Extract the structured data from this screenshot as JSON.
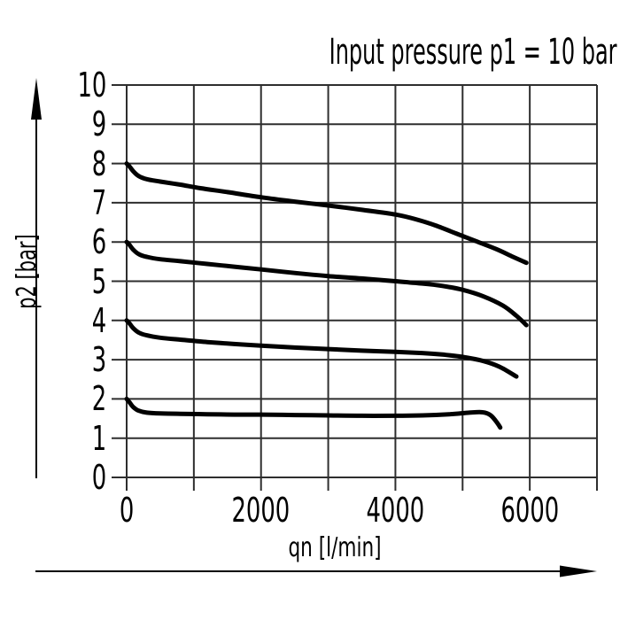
{
  "page": {
    "background_color": "#ffffff",
    "ink_color": "#000000",
    "grid_color": "#2e2e2e"
  },
  "chart_data": {
    "type": "line",
    "title": "Input pressure p1 = 10 bar",
    "xlabel": "qn [l/min]",
    "ylabel": "p2 [bar]",
    "xlim": [
      0,
      7000
    ],
    "ylim": [
      0,
      10
    ],
    "grid": true,
    "x_grid_step": 1000,
    "y_grid_step": 1,
    "legend": "none",
    "x_tick_labels": [
      {
        "value": 0,
        "label": "0"
      },
      {
        "value": 2000,
        "label": "2000"
      },
      {
        "value": 4000,
        "label": "4000"
      },
      {
        "value": 6000,
        "label": "6000"
      }
    ],
    "y_tick_labels": [
      {
        "value": 0,
        "label": "0"
      },
      {
        "value": 1,
        "label": "1"
      },
      {
        "value": 2,
        "label": "2"
      },
      {
        "value": 3,
        "label": "3"
      },
      {
        "value": 4,
        "label": "4"
      },
      {
        "value": 5,
        "label": "5"
      },
      {
        "value": 6,
        "label": "6"
      },
      {
        "value": 7,
        "label": "7"
      },
      {
        "value": 8,
        "label": "8"
      },
      {
        "value": 9,
        "label": "9"
      },
      {
        "value": 10,
        "label": "10"
      }
    ],
    "series": [
      {
        "name": "output pressure curve, set point 8 bar",
        "color": "#000000",
        "points": [
          [
            0,
            8.0
          ],
          [
            40,
            7.93
          ],
          [
            100,
            7.8
          ],
          [
            180,
            7.68
          ],
          [
            300,
            7.6
          ],
          [
            500,
            7.54
          ],
          [
            800,
            7.46
          ],
          [
            1100,
            7.37
          ],
          [
            1500,
            7.27
          ],
          [
            2000,
            7.14
          ],
          [
            2500,
            7.03
          ],
          [
            3000,
            6.93
          ],
          [
            3500,
            6.82
          ],
          [
            4000,
            6.7
          ],
          [
            4300,
            6.58
          ],
          [
            4600,
            6.42
          ],
          [
            4900,
            6.22
          ],
          [
            5200,
            6.02
          ],
          [
            5500,
            5.82
          ],
          [
            5750,
            5.62
          ],
          [
            5950,
            5.47
          ]
        ]
      },
      {
        "name": "output pressure curve, set point 6 bar",
        "color": "#000000",
        "points": [
          [
            0,
            6.0
          ],
          [
            40,
            5.93
          ],
          [
            100,
            5.8
          ],
          [
            180,
            5.69
          ],
          [
            300,
            5.62
          ],
          [
            500,
            5.56
          ],
          [
            800,
            5.51
          ],
          [
            1200,
            5.44
          ],
          [
            1600,
            5.37
          ],
          [
            2000,
            5.3
          ],
          [
            2500,
            5.21
          ],
          [
            3000,
            5.13
          ],
          [
            3500,
            5.07
          ],
          [
            4000,
            5.0
          ],
          [
            4400,
            4.94
          ],
          [
            4700,
            4.88
          ],
          [
            5000,
            4.78
          ],
          [
            5300,
            4.62
          ],
          [
            5600,
            4.38
          ],
          [
            5800,
            4.12
          ],
          [
            5950,
            3.88
          ]
        ]
      },
      {
        "name": "output pressure curve, set point 4 bar",
        "color": "#000000",
        "points": [
          [
            0,
            4.0
          ],
          [
            40,
            3.93
          ],
          [
            100,
            3.8
          ],
          [
            180,
            3.69
          ],
          [
            300,
            3.62
          ],
          [
            500,
            3.56
          ],
          [
            800,
            3.51
          ],
          [
            1200,
            3.45
          ],
          [
            1600,
            3.4
          ],
          [
            2000,
            3.36
          ],
          [
            2500,
            3.31
          ],
          [
            3000,
            3.27
          ],
          [
            3500,
            3.23
          ],
          [
            4000,
            3.2
          ],
          [
            4400,
            3.17
          ],
          [
            4700,
            3.13
          ],
          [
            5000,
            3.07
          ],
          [
            5300,
            2.97
          ],
          [
            5550,
            2.82
          ],
          [
            5800,
            2.57
          ]
        ]
      },
      {
        "name": "output pressure curve, set point 2 bar",
        "color": "#000000",
        "points": [
          [
            0,
            2.0
          ],
          [
            40,
            1.92
          ],
          [
            100,
            1.79
          ],
          [
            180,
            1.7
          ],
          [
            300,
            1.65
          ],
          [
            500,
            1.63
          ],
          [
            800,
            1.62
          ],
          [
            1200,
            1.61
          ],
          [
            1600,
            1.6
          ],
          [
            2000,
            1.6
          ],
          [
            2500,
            1.59
          ],
          [
            3000,
            1.58
          ],
          [
            3500,
            1.57
          ],
          [
            4000,
            1.57
          ],
          [
            4400,
            1.58
          ],
          [
            4800,
            1.61
          ],
          [
            5100,
            1.65
          ],
          [
            5300,
            1.66
          ],
          [
            5420,
            1.58
          ],
          [
            5520,
            1.38
          ],
          [
            5560,
            1.27
          ]
        ]
      }
    ]
  }
}
